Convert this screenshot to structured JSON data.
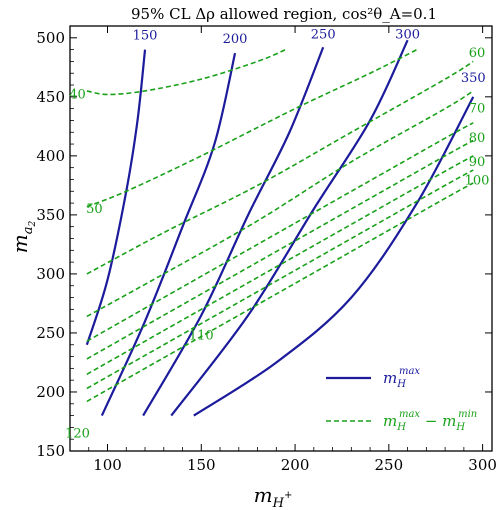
{
  "chart_data": {
    "type": "line",
    "title": "95% CL Δρ allowed region, cos²θ_A=0.1",
    "xlabel": "m_{H⁺}",
    "ylabel": "m_{a₂}",
    "xlim": [
      80,
      305
    ],
    "ylim": [
      150,
      510
    ],
    "xticks": [
      100,
      150,
      200,
      250,
      300
    ],
    "yticks": [
      150,
      200,
      250,
      300,
      350,
      400,
      450,
      500
    ],
    "grid": false,
    "legend_position": "bottom-right",
    "legend": [
      {
        "label": "m_H^max",
        "style": "solid",
        "color": "#1b1b9c"
      },
      {
        "label": "m_H^max − m_H^min",
        "style": "dashed",
        "color": "#1aa11a"
      }
    ],
    "colors": {
      "solid": "#1b1b9c",
      "dashed": "#1aa11a"
    },
    "series": [
      {
        "label": "150",
        "style": "solid",
        "points": [
          [
            89,
            240
          ],
          [
            100,
            295
          ],
          [
            110,
            370
          ],
          [
            116,
            430
          ],
          [
            120,
            490
          ]
        ]
      },
      {
        "label": "200",
        "style": "solid",
        "points": [
          [
            97,
            180
          ],
          [
            120,
            260
          ],
          [
            140,
            340
          ],
          [
            157,
            410
          ],
          [
            168,
            487
          ]
        ]
      },
      {
        "label": "250",
        "style": "solid",
        "points": [
          [
            119,
            180
          ],
          [
            150,
            265
          ],
          [
            175,
            350
          ],
          [
            197,
            420
          ],
          [
            215,
            492
          ]
        ]
      },
      {
        "label": "300",
        "style": "solid",
        "points": [
          [
            134,
            180
          ],
          [
            175,
            265
          ],
          [
            210,
            355
          ],
          [
            240,
            430
          ],
          [
            260,
            498
          ]
        ]
      },
      {
        "label": "350",
        "style": "solid",
        "points": [
          [
            146,
            180
          ],
          [
            190,
            225
          ],
          [
            230,
            280
          ],
          [
            265,
            360
          ],
          [
            295,
            450
          ]
        ]
      },
      {
        "label": "40",
        "style": "dashed",
        "points": [
          [
            89,
            455
          ],
          [
            100,
            452
          ],
          [
            120,
            455
          ],
          [
            150,
            465
          ],
          [
            180,
            480
          ],
          [
            195,
            490
          ]
        ]
      },
      {
        "label": "50",
        "style": "dashed",
        "points": [
          [
            89,
            357
          ],
          [
            110,
            370
          ],
          [
            150,
            400
          ],
          [
            200,
            440
          ],
          [
            240,
            470
          ],
          [
            265,
            490
          ]
        ]
      },
      {
        "label": "60",
        "style": "dashed",
        "points": [
          [
            89,
            300
          ],
          [
            130,
            335
          ],
          [
            180,
            375
          ],
          [
            230,
            420
          ],
          [
            280,
            465
          ],
          [
            295,
            480
          ]
        ]
      },
      {
        "label": "70",
        "style": "dashed",
        "points": [
          [
            89,
            264
          ],
          [
            130,
            300
          ],
          [
            180,
            345
          ],
          [
            230,
            395
          ],
          [
            280,
            440
          ],
          [
            295,
            455
          ]
        ]
      },
      {
        "label": "80",
        "style": "dashed",
        "points": [
          [
            89,
            243
          ],
          [
            130,
            280
          ],
          [
            180,
            325
          ],
          [
            230,
            370
          ],
          [
            280,
            415
          ],
          [
            295,
            428
          ]
        ]
      },
      {
        "label": "90",
        "style": "dashed",
        "points": [
          [
            89,
            228
          ],
          [
            130,
            265
          ],
          [
            180,
            310
          ],
          [
            230,
            355
          ],
          [
            280,
            400
          ],
          [
            295,
            413
          ]
        ]
      },
      {
        "label": "100",
        "style": "dashed",
        "points": [
          [
            89,
            215
          ],
          [
            130,
            252
          ],
          [
            180,
            297
          ],
          [
            230,
            342
          ],
          [
            280,
            387
          ],
          [
            295,
            400
          ]
        ]
      },
      {
        "label": "110",
        "style": "dashed",
        "points": [
          [
            89,
            203
          ],
          [
            130,
            240
          ],
          [
            180,
            285
          ],
          [
            230,
            330
          ],
          [
            280,
            375
          ],
          [
            295,
            388
          ]
        ]
      },
      {
        "label": "120",
        "style": "dashed",
        "points": [
          [
            89,
            192
          ],
          [
            130,
            229
          ],
          [
            180,
            274
          ],
          [
            230,
            319
          ],
          [
            280,
            364
          ],
          [
            295,
            377
          ]
        ]
      }
    ],
    "line_labels": [
      {
        "text": "150",
        "x": 120,
        "y": 502,
        "color": "blue"
      },
      {
        "text": "200",
        "x": 168,
        "y": 499,
        "color": "blue"
      },
      {
        "text": "250",
        "x": 215,
        "y": 503,
        "color": "blue"
      },
      {
        "text": "300",
        "x": 260,
        "y": 503,
        "color": "blue"
      },
      {
        "text": "350",
        "x": 295,
        "y": 466,
        "color": "blue"
      },
      {
        "text": "40",
        "x": 84,
        "y": 452,
        "color": "green"
      },
      {
        "text": "50",
        "x": 93,
        "y": 355,
        "color": "green"
      },
      {
        "text": "60",
        "x": 297,
        "y": 487,
        "color": "green"
      },
      {
        "text": "70",
        "x": 297,
        "y": 440,
        "color": "green"
      },
      {
        "text": "80",
        "x": 297,
        "y": 415,
        "color": "green"
      },
      {
        "text": "90",
        "x": 297,
        "y": 395,
        "color": "green"
      },
      {
        "text": "100",
        "x": 297,
        "y": 379,
        "color": "green"
      },
      {
        "text": "110",
        "x": 150,
        "y": 248,
        "color": "green"
      },
      {
        "text": "120",
        "x": 84,
        "y": 165,
        "color": "green"
      }
    ]
  }
}
